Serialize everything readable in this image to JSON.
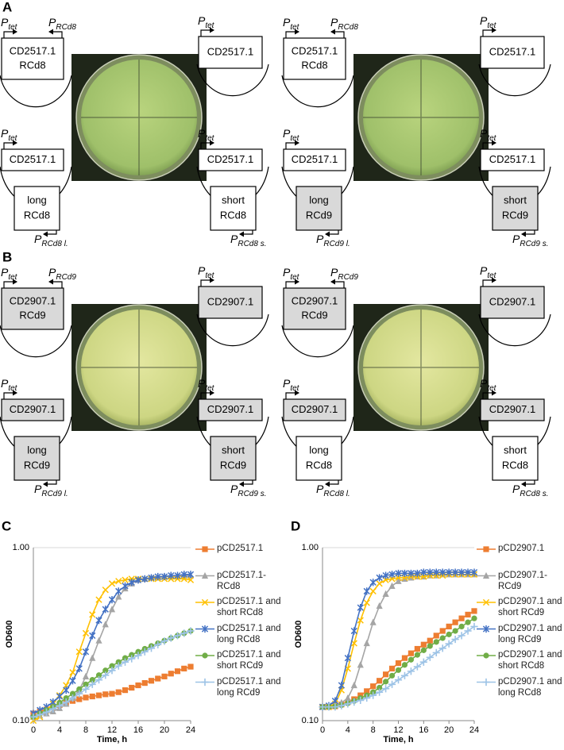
{
  "panels": [
    {
      "label": "A",
      "groups": [
        {
          "constructs": [
            {
              "promoters": [
                {
                  "p": "P",
                  "sub": "tet"
                },
                {
                  "p": "P",
                  "sub": "RCd8"
                }
              ],
              "box": {
                "lines": [
                  "CD2517.1",
                  "RCd8"
                ],
                "shaded": false
              }
            },
            {
              "promoters": [
                {
                  "p": "P",
                  "sub": "tet"
                }
              ],
              "box": {
                "lines": [
                  "CD2517.1"
                ],
                "shaded": false
              }
            },
            {
              "promoters": [
                {
                  "p": "P",
                  "sub": "tet"
                }
              ],
              "box": {
                "lines": [
                  "CD2517.1"
                ],
                "shaded": false
              },
              "insert": {
                "lines": [
                  "long",
                  "RCd8"
                ],
                "shaded": false
              },
              "insert_promoter": {
                "p": "P",
                "sub": "RCd8 l."
              }
            },
            {
              "promoters": [
                {
                  "p": "P",
                  "sub": "tet"
                }
              ],
              "box": {
                "lines": [
                  "CD2517.1"
                ],
                "shaded": false
              },
              "insert": {
                "lines": [
                  "short",
                  "RCd8"
                ],
                "shaded": false
              },
              "insert_promoter": {
                "p": "P",
                "sub": "RCd8 s."
              }
            }
          ]
        },
        {
          "constructs": [
            {
              "promoters": [
                {
                  "p": "P",
                  "sub": "tet"
                },
                {
                  "p": "P",
                  "sub": "RCd8"
                }
              ],
              "box": {
                "lines": [
                  "CD2517.1",
                  "RCd8"
                ],
                "shaded": false
              }
            },
            {
              "promoters": [
                {
                  "p": "P",
                  "sub": "tet"
                }
              ],
              "box": {
                "lines": [
                  "CD2517.1"
                ],
                "shaded": false
              }
            },
            {
              "promoters": [
                {
                  "p": "P",
                  "sub": "tet"
                }
              ],
              "box": {
                "lines": [
                  "CD2517.1"
                ],
                "shaded": false
              },
              "insert": {
                "lines": [
                  "long",
                  "RCd9"
                ],
                "shaded": true
              },
              "insert_promoter": {
                "p": "P",
                "sub": "RCd9 l."
              }
            },
            {
              "promoters": [
                {
                  "p": "P",
                  "sub": "tet"
                }
              ],
              "box": {
                "lines": [
                  "CD2517.1"
                ],
                "shaded": false
              },
              "insert": {
                "lines": [
                  "short",
                  "RCd9"
                ],
                "shaded": true
              },
              "insert_promoter": {
                "p": "P",
                "sub": "RCd9 s."
              }
            }
          ]
        }
      ]
    },
    {
      "label": "B",
      "groups": [
        {
          "constructs": [
            {
              "promoters": [
                {
                  "p": "P",
                  "sub": "tet"
                },
                {
                  "p": "P",
                  "sub": "RCd9"
                }
              ],
              "box": {
                "lines": [
                  "CD2907.1",
                  "RCd9"
                ],
                "shaded": true
              }
            },
            {
              "promoters": [
                {
                  "p": "P",
                  "sub": "tet"
                }
              ],
              "box": {
                "lines": [
                  "CD2907.1"
                ],
                "shaded": true
              }
            },
            {
              "promoters": [
                {
                  "p": "P",
                  "sub": "tet"
                }
              ],
              "box": {
                "lines": [
                  "CD2907.1"
                ],
                "shaded": true
              },
              "insert": {
                "lines": [
                  "long",
                  "RCd9"
                ],
                "shaded": true
              },
              "insert_promoter": {
                "p": "P",
                "sub": "RCd9 l."
              }
            },
            {
              "promoters": [
                {
                  "p": "P",
                  "sub": "tet"
                }
              ],
              "box": {
                "lines": [
                  "CD2907.1"
                ],
                "shaded": true
              },
              "insert": {
                "lines": [
                  "short",
                  "RCd9"
                ],
                "shaded": true
              },
              "insert_promoter": {
                "p": "P",
                "sub": "RCd9 s."
              }
            }
          ]
        },
        {
          "constructs": [
            {
              "promoters": [
                {
                  "p": "P",
                  "sub": "tet"
                },
                {
                  "p": "P",
                  "sub": "RCd9"
                }
              ],
              "box": {
                "lines": [
                  "CD2907.1",
                  "RCd9"
                ],
                "shaded": true
              }
            },
            {
              "promoters": [
                {
                  "p": "P",
                  "sub": "tet"
                }
              ],
              "box": {
                "lines": [
                  "CD2907.1"
                ],
                "shaded": true
              }
            },
            {
              "promoters": [
                {
                  "p": "P",
                  "sub": "tet"
                }
              ],
              "box": {
                "lines": [
                  "CD2907.1"
                ],
                "shaded": true
              },
              "insert": {
                "lines": [
                  "long",
                  "RCd8"
                ],
                "shaded": false
              },
              "insert_promoter": {
                "p": "P",
                "sub": "RCd8 l."
              }
            },
            {
              "promoters": [
                {
                  "p": "P",
                  "sub": "tet"
                }
              ],
              "box": {
                "lines": [
                  "CD2907.1"
                ],
                "shaded": true
              },
              "insert": {
                "lines": [
                  "short",
                  "RCd8"
                ],
                "shaded": false
              },
              "insert_promoter": {
                "p": "P",
                "sub": "RCd8 s."
              }
            }
          ]
        }
      ]
    }
  ],
  "chart_data": [
    {
      "type": "line",
      "label": "C",
      "xlabel": "Time, h",
      "ylabel": "OD600",
      "x": [
        0,
        1,
        2,
        3,
        4,
        5,
        6,
        7,
        8,
        9,
        10,
        11,
        12,
        13,
        14,
        15,
        16,
        17,
        18,
        19,
        20,
        21,
        22,
        23,
        24
      ],
      "xlim": [
        0,
        24
      ],
      "xticks": [
        0,
        4,
        8,
        12,
        16,
        20,
        24
      ],
      "ylim": [
        0.1,
        1
      ],
      "yticks": [
        {
          "value": 0.1,
          "label": "0.10"
        },
        {
          "value": 1,
          "label": "1.00"
        }
      ],
      "log_y": true,
      "grid": true,
      "series": [
        {
          "name": "pCD2517.1",
          "color": "#ed7d31",
          "marker": "square",
          "values": [
            0.11,
            0.113,
            0.116,
            0.12,
            0.123,
            0.127,
            0.13,
            0.133,
            0.136,
            0.138,
            0.14,
            0.142,
            0.143,
            0.146,
            0.15,
            0.155,
            0.16,
            0.165,
            0.17,
            0.175,
            0.18,
            0.187,
            0.193,
            0.2,
            0.205
          ]
        },
        {
          "name": "pCD2517.1-RCd8",
          "color": "#a5a5a5",
          "marker": "triangle",
          "values": [
            0.105,
            0.107,
            0.11,
            0.113,
            0.118,
            0.125,
            0.135,
            0.15,
            0.18,
            0.23,
            0.29,
            0.36,
            0.44,
            0.52,
            0.58,
            0.62,
            0.65,
            0.66,
            0.67,
            0.67,
            0.68,
            0.68,
            0.68,
            0.69,
            0.69
          ]
        },
        {
          "name": "pCD2517.1 and short RCd8",
          "color": "#ffc000",
          "marker": "x",
          "values": [
            0.1,
            0.105,
            0.115,
            0.125,
            0.14,
            0.16,
            0.19,
            0.25,
            0.32,
            0.41,
            0.5,
            0.57,
            0.62,
            0.64,
            0.65,
            0.66,
            0.66,
            0.66,
            0.66,
            0.66,
            0.66,
            0.66,
            0.66,
            0.66,
            0.65
          ]
        },
        {
          "name": "pCD2517.1 and long RCd8",
          "color": "#4472c4",
          "marker": "star",
          "values": [
            0.11,
            0.115,
            0.12,
            0.128,
            0.138,
            0.15,
            0.17,
            0.2,
            0.25,
            0.31,
            0.38,
            0.44,
            0.5,
            0.56,
            0.6,
            0.63,
            0.65,
            0.66,
            0.67,
            0.68,
            0.68,
            0.69,
            0.69,
            0.7,
            0.7
          ]
        },
        {
          "name": "pCD2517.1 and short RCd9",
          "color": "#70ad47",
          "marker": "circle",
          "values": [
            0.105,
            0.11,
            0.115,
            0.12,
            0.127,
            0.135,
            0.143,
            0.152,
            0.162,
            0.172,
            0.183,
            0.195,
            0.207,
            0.218,
            0.23,
            0.24,
            0.25,
            0.26,
            0.27,
            0.28,
            0.29,
            0.3,
            0.31,
            0.32,
            0.33
          ]
        },
        {
          "name": "pCD2517.1 and long RCd9",
          "color": "#9dc3e6",
          "marker": "plus",
          "values": [
            0.105,
            0.108,
            0.112,
            0.117,
            0.122,
            0.128,
            0.135,
            0.143,
            0.152,
            0.162,
            0.172,
            0.183,
            0.195,
            0.207,
            0.218,
            0.228,
            0.238,
            0.25,
            0.262,
            0.275,
            0.288,
            0.3,
            0.31,
            0.32,
            0.33
          ]
        }
      ]
    },
    {
      "type": "line",
      "label": "D",
      "xlabel": "Time, h",
      "ylabel": "OD600",
      "x": [
        0,
        1,
        2,
        3,
        4,
        5,
        6,
        7,
        8,
        9,
        10,
        11,
        12,
        13,
        14,
        15,
        16,
        17,
        18,
        19,
        20,
        21,
        22,
        23,
        24
      ],
      "xlim": [
        0,
        24
      ],
      "xticks": [
        0,
        4,
        8,
        12,
        16,
        20,
        24
      ],
      "ylim": [
        0.1,
        1
      ],
      "yticks": [
        {
          "value": 0.1,
          "label": "0.10"
        },
        {
          "value": 1,
          "label": "1.00"
        }
      ],
      "log_y": true,
      "grid": true,
      "series": [
        {
          "name": "pCD2907.1",
          "color": "#ed7d31",
          "marker": "square",
          "values": [
            0.12,
            0.12,
            0.121,
            0.124,
            0.128,
            0.133,
            0.14,
            0.148,
            0.158,
            0.17,
            0.185,
            0.2,
            0.215,
            0.23,
            0.245,
            0.26,
            0.275,
            0.29,
            0.31,
            0.33,
            0.35,
            0.37,
            0.39,
            0.41,
            0.43
          ]
        },
        {
          "name": "pCD2907.1-RCd9",
          "color": "#a5a5a5",
          "marker": "triangle",
          "values": [
            0.12,
            0.12,
            0.122,
            0.127,
            0.135,
            0.16,
            0.21,
            0.28,
            0.37,
            0.46,
            0.54,
            0.6,
            0.64,
            0.66,
            0.67,
            0.68,
            0.68,
            0.69,
            0.69,
            0.7,
            0.7,
            0.7,
            0.7,
            0.7,
            0.7
          ]
        },
        {
          "name": "pCD2907.1 and short RCd9",
          "color": "#ffc000",
          "marker": "x",
          "values": [
            0.12,
            0.12,
            0.125,
            0.15,
            0.2,
            0.28,
            0.38,
            0.48,
            0.56,
            0.62,
            0.65,
            0.66,
            0.67,
            0.67,
            0.68,
            0.68,
            0.68,
            0.69,
            0.69,
            0.69,
            0.7,
            0.7,
            0.7,
            0.7,
            0.7
          ]
        },
        {
          "name": "pCD2907.1 and long RCd9",
          "color": "#4472c4",
          "marker": "star",
          "values": [
            0.12,
            0.122,
            0.13,
            0.16,
            0.23,
            0.33,
            0.45,
            0.56,
            0.63,
            0.67,
            0.69,
            0.7,
            0.71,
            0.71,
            0.71,
            0.71,
            0.72,
            0.72,
            0.72,
            0.72,
            0.72,
            0.72,
            0.72,
            0.72,
            0.72
          ]
        },
        {
          "name": "pCD2907.1 and short RCd8",
          "color": "#70ad47",
          "marker": "circle",
          "values": [
            0.12,
            0.12,
            0.121,
            0.123,
            0.126,
            0.13,
            0.135,
            0.14,
            0.146,
            0.155,
            0.168,
            0.182,
            0.196,
            0.21,
            0.225,
            0.24,
            0.255,
            0.27,
            0.285,
            0.3,
            0.315,
            0.33,
            0.35,
            0.37,
            0.39
          ]
        },
        {
          "name": "pCD2907.1 and long RCd8",
          "color": "#9dc3e6",
          "marker": "plus",
          "values": [
            0.12,
            0.12,
            0.12,
            0.122,
            0.125,
            0.128,
            0.131,
            0.135,
            0.14,
            0.146,
            0.153,
            0.162,
            0.172,
            0.182,
            0.193,
            0.205,
            0.218,
            0.232,
            0.247,
            0.262,
            0.278,
            0.295,
            0.31,
            0.33,
            0.35
          ]
        }
      ]
    }
  ]
}
